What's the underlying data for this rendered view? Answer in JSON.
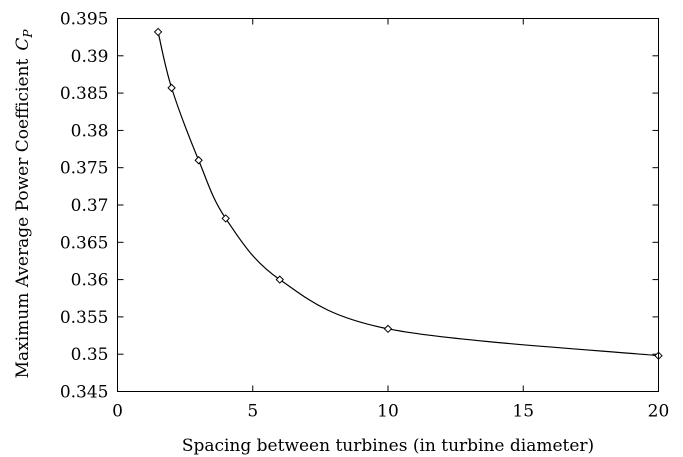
{
  "chart_data": {
    "type": "line",
    "xlabel": "Spacing between turbines (in turbine diameter)",
    "ylabel_text": "Maximum Average Power Coefficient",
    "ylabel_symbol": "C",
    "ylabel_subscript": "P",
    "xlim": [
      0,
      20
    ],
    "ylim": [
      0.345,
      0.395
    ],
    "x_ticks": [
      0,
      5,
      10,
      15,
      20
    ],
    "y_ticks": [
      0.345,
      0.35,
      0.355,
      0.36,
      0.365,
      0.37,
      0.375,
      0.38,
      0.385,
      0.39,
      0.395
    ],
    "grid": false,
    "series": [
      {
        "x": [
          1.5,
          2,
          3,
          4,
          6,
          10,
          20
        ],
        "y": [
          0.3932,
          0.3857,
          0.376,
          0.3682,
          0.36,
          0.3534,
          0.3498
        ]
      }
    ]
  }
}
